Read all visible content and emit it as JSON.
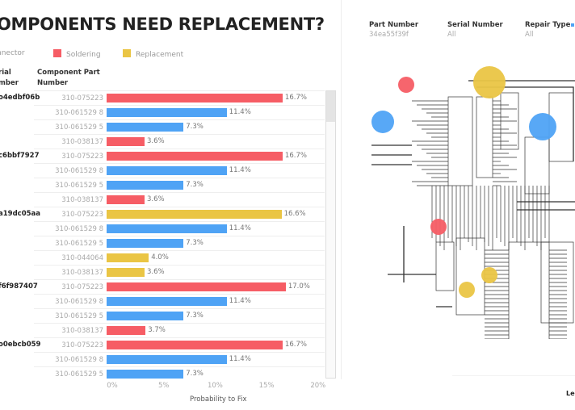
{
  "title": "OMPONENTS NEED REPLACEMENT?",
  "legend": [
    {
      "label": "nnector",
      "color": "#4fa3f5"
    },
    {
      "label": "Soldering",
      "color": "#f65d65"
    },
    {
      "label": "Replacement",
      "color": "#eac544"
    }
  ],
  "headers": {
    "serial": "rial\nmber",
    "component": "Component Part\nNumber"
  },
  "filters": [
    {
      "label": "Part Number",
      "value": "34ea55f39f"
    },
    {
      "label": "Serial Number",
      "value": "All"
    },
    {
      "label": "Repair Type",
      "value": "All"
    }
  ],
  "legend_link": "Leg",
  "chart_data": {
    "type": "bar",
    "xlabel": "Probability to Fix",
    "xlim": [
      0,
      20
    ],
    "ticks": [
      "0%",
      "5%",
      "10%",
      "15%",
      "20%"
    ],
    "groups": [
      {
        "serial": "o4edbf06b",
        "rows": [
          {
            "part": "310-075223",
            "value": 16.7,
            "label": "16.7%",
            "type": "Soldering"
          },
          {
            "part": "310-061529 8",
            "value": 11.4,
            "label": "11.4%",
            "type": "Connector"
          },
          {
            "part": "310-061529 5",
            "value": 7.3,
            "label": "7.3%",
            "type": "Connector"
          },
          {
            "part": "310-038137",
            "value": 3.6,
            "label": "3.6%",
            "type": "Soldering"
          }
        ]
      },
      {
        "serial": "c6bbf7927",
        "rows": [
          {
            "part": "310-075223",
            "value": 16.7,
            "label": "16.7%",
            "type": "Soldering"
          },
          {
            "part": "310-061529 8",
            "value": 11.4,
            "label": "11.4%",
            "type": "Connector"
          },
          {
            "part": "310-061529 5",
            "value": 7.3,
            "label": "7.3%",
            "type": "Connector"
          },
          {
            "part": "310-038137",
            "value": 3.6,
            "label": "3.6%",
            "type": "Soldering"
          }
        ]
      },
      {
        "serial": "a19dc05aa",
        "rows": [
          {
            "part": "310-075223",
            "value": 16.6,
            "label": "16.6%",
            "type": "Replacement"
          },
          {
            "part": "310-061529 8",
            "value": 11.4,
            "label": "11.4%",
            "type": "Connector"
          },
          {
            "part": "310-061529 5",
            "value": 7.3,
            "label": "7.3%",
            "type": "Connector"
          },
          {
            "part": "310-044064",
            "value": 4.0,
            "label": "4.0%",
            "type": "Replacement"
          },
          {
            "part": "310-038137",
            "value": 3.6,
            "label": "3.6%",
            "type": "Replacement"
          }
        ]
      },
      {
        "serial": "f6f987407",
        "rows": [
          {
            "part": "310-075223",
            "value": 17.0,
            "label": "17.0%",
            "type": "Soldering"
          },
          {
            "part": "310-061529 8",
            "value": 11.4,
            "label": "11.4%",
            "type": "Connector"
          },
          {
            "part": "310-061529 5",
            "value": 7.3,
            "label": "7.3%",
            "type": "Connector"
          },
          {
            "part": "310-038137",
            "value": 3.7,
            "label": "3.7%",
            "type": "Soldering"
          }
        ]
      },
      {
        "serial": "o0ebcb059",
        "rows": [
          {
            "part": "310-075223",
            "value": 16.7,
            "label": "16.7%",
            "type": "Soldering"
          },
          {
            "part": "310-061529 8",
            "value": 11.4,
            "label": "11.4%",
            "type": "Connector"
          },
          {
            "part": "310-061529 5",
            "value": 7.3,
            "label": "7.3%",
            "type": "Connector"
          }
        ]
      }
    ],
    "colors": {
      "Connector": "#4fa3f5",
      "Soldering": "#f65d65",
      "Replacement": "#eac544"
    }
  },
  "schematic_markers": [
    {
      "type": "Soldering"
    },
    {
      "type": "Replacement"
    },
    {
      "type": "Connector"
    },
    {
      "type": "Connector"
    },
    {
      "type": "Soldering"
    },
    {
      "type": "Replacement"
    },
    {
      "type": "Replacement"
    }
  ]
}
